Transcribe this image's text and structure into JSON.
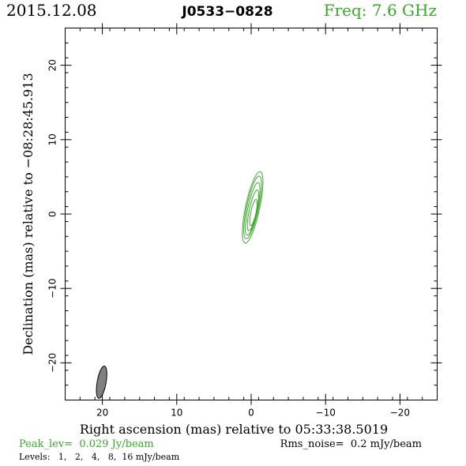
{
  "header": {
    "date": "2015.12.08",
    "source": "J0533−0828",
    "freq": "Freq: 7.6 GHz"
  },
  "colors": {
    "contour": "#3aa62a",
    "accent": "#3aa62a",
    "beam_fill": "#808080",
    "text": "#000000"
  },
  "chart_data": {
    "type": "contour",
    "xlabel": "Right ascension (mas) relative to 05:33:38.5019",
    "ylabel": "Declination (mas) relative to −08:28:45.913",
    "xlim": [
      25,
      -25
    ],
    "ylim": [
      -25,
      25
    ],
    "x_ticks": [
      20,
      10,
      0,
      -10,
      -20
    ],
    "x_tick_labels": [
      "20",
      "10",
      "0",
      "−10",
      "−20"
    ],
    "y_ticks": [
      20,
      10,
      0,
      -10,
      -20
    ],
    "y_tick_labels": [
      "20",
      "10",
      "0",
      "−10",
      "−20"
    ],
    "x_minor_step": 2,
    "y_minor_step": 2,
    "contours": [
      {
        "level_mJy": 1,
        "center": [
          -0.2,
          0.9
        ],
        "semi_major": 4.9,
        "semi_minor": 0.95,
        "pa_deg": 12
      },
      {
        "level_mJy": 2,
        "center": [
          -0.2,
          0.9
        ],
        "semi_major": 4.3,
        "semi_minor": 0.8,
        "pa_deg": 12
      },
      {
        "level_mJy": 4,
        "center": [
          -0.2,
          0.7
        ],
        "semi_major": 3.6,
        "semi_minor": 0.65,
        "pa_deg": 12
      },
      {
        "level_mJy": 8,
        "center": [
          -0.25,
          0.5
        ],
        "semi_major": 2.8,
        "semi_minor": 0.5,
        "pa_deg": 12
      },
      {
        "level_mJy": 16,
        "center": [
          -0.3,
          0.2
        ],
        "semi_major": 1.8,
        "semi_minor": 0.35,
        "pa_deg": 12
      }
    ],
    "beam": {
      "center": [
        20.1,
        -22.6
      ],
      "semi_major": 2.2,
      "semi_minor": 0.6,
      "pa_deg": 10
    }
  },
  "footer": {
    "peak": "Peak_lev=  0.029 Jy/beam",
    "rms": "Rms_noise=  0.2 mJy/beam",
    "levels": "Levels:   1,   2,   4,   8,  16 mJy/beam"
  }
}
